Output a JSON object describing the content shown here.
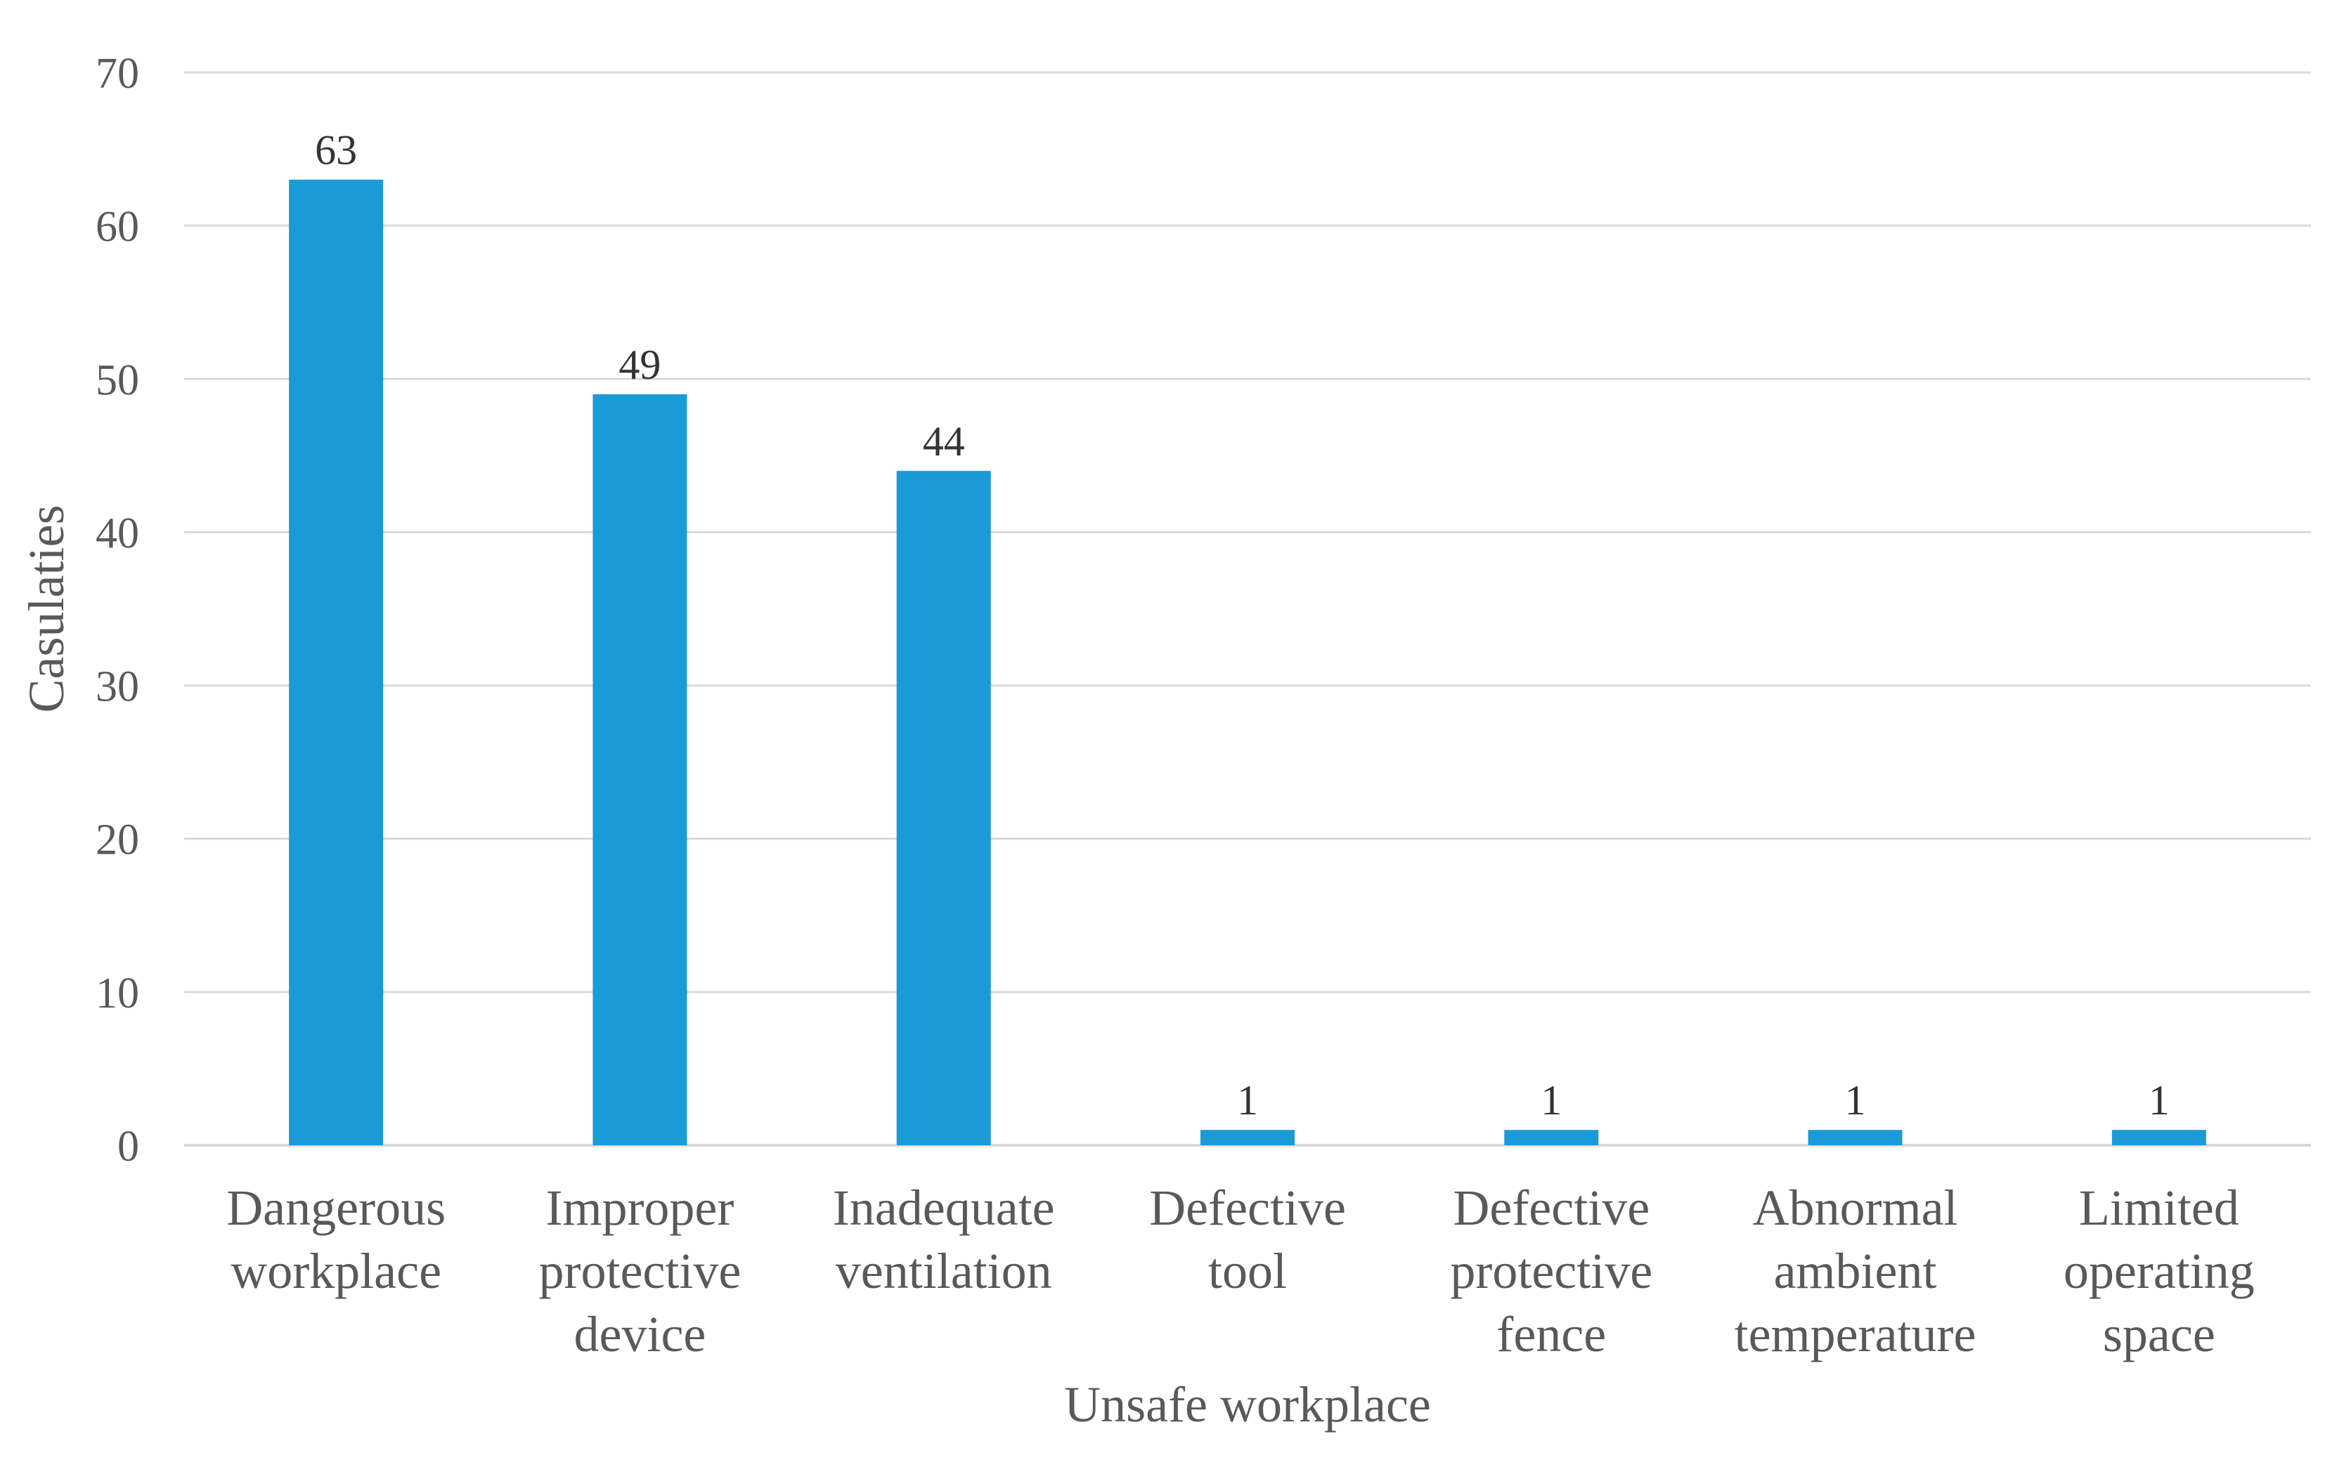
{
  "chart_data": {
    "type": "bar",
    "title": "",
    "xlabel": "Unsafe workplace",
    "ylabel": "Casulaties",
    "categories": [
      [
        "Dangerous",
        "workplace"
      ],
      [
        "Improper",
        "protective",
        "device"
      ],
      [
        "Inadequate",
        "ventilation"
      ],
      [
        "Defective",
        "tool"
      ],
      [
        "Defective",
        "protective",
        "fence"
      ],
      [
        "Abnormal",
        "ambient",
        "temperature"
      ],
      [
        "Limited",
        "operating",
        "space"
      ]
    ],
    "values": [
      63,
      49,
      44,
      1,
      1,
      1,
      1
    ],
    "ylim": [
      0,
      70
    ],
    "yticks": [
      0,
      10,
      20,
      30,
      40,
      50,
      60,
      70
    ],
    "grid": true,
    "legend": "none",
    "bar_color": "#1a9ad6"
  }
}
